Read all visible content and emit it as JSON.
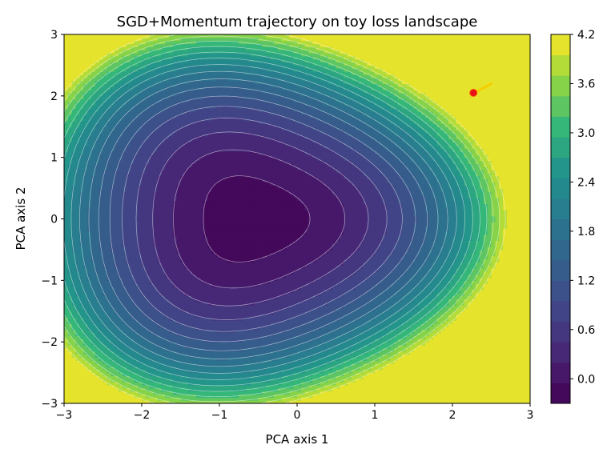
{
  "chart_data": {
    "type": "contour",
    "title": "SGD+Momentum trajectory on toy loss landscape",
    "xlabel": "PCA axis 1",
    "ylabel": "PCA axis 2",
    "xlim": [
      -3,
      3
    ],
    "ylim": [
      -3,
      3
    ],
    "xticks": [
      -3,
      -2,
      -1,
      0,
      1,
      2,
      3
    ],
    "yticks": [
      -3,
      -2,
      -1,
      0,
      1,
      2,
      3
    ],
    "xtick_labels": [
      "−3",
      "−2",
      "−1",
      "0",
      "1",
      "2",
      "3"
    ],
    "ytick_labels": [
      "−3",
      "−2",
      "−1",
      "0",
      "1",
      "2",
      "3"
    ],
    "colormap": "viridis",
    "colorbar": {
      "min": -0.3,
      "max": 4.2,
      "levels": 18,
      "ticks": [
        0.0,
        0.6,
        1.2,
        1.8,
        2.4,
        3.0,
        3.6,
        4.2
      ],
      "tick_labels": [
        "0.0",
        "0.6",
        "1.2",
        "1.8",
        "2.4",
        "3.0",
        "3.6",
        "4.2"
      ]
    },
    "landscape": {
      "minimum": [
        -0.58,
        0.0
      ],
      "description_levels": "filled contours with thin white contour lines"
    },
    "trajectory": {
      "color": "#f5d000",
      "start_marker_color": "#e8101a",
      "points": [
        [
          2.5,
          2.2
        ],
        [
          2.4,
          2.13
        ],
        [
          2.33,
          2.08
        ],
        [
          2.27,
          2.05
        ]
      ],
      "start": [
        2.27,
        2.05
      ]
    }
  }
}
